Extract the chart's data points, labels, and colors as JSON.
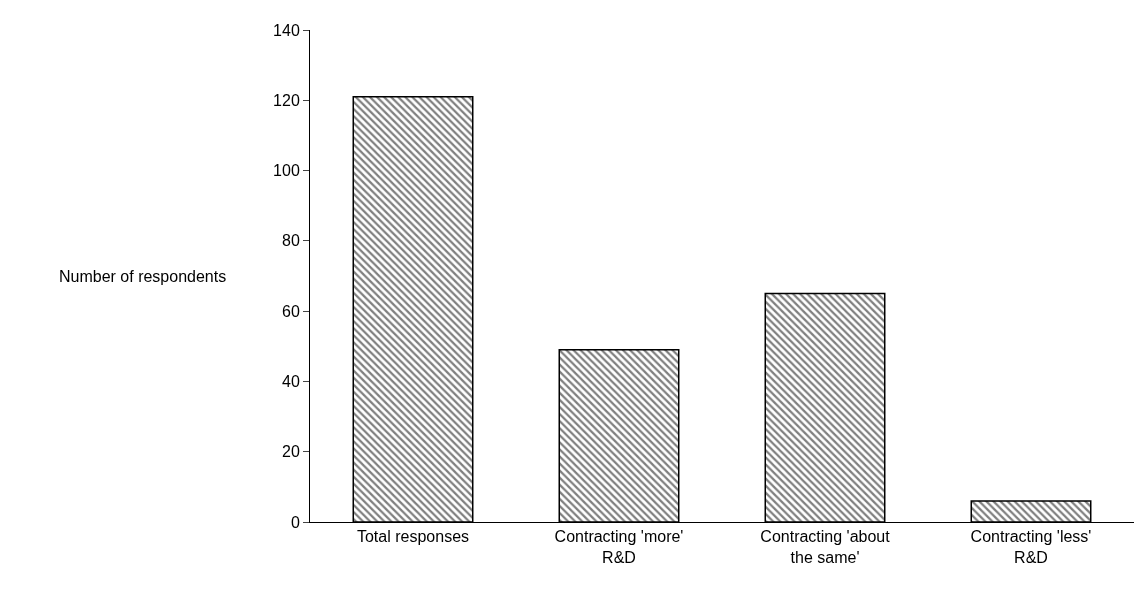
{
  "chart_data": {
    "type": "bar",
    "ylabel": "Number of respondents",
    "categories": [
      "Total responses",
      "Contracting 'more'\nR&D",
      "Contracting 'about\nthe same'",
      "Contracting 'less'\nR&D"
    ],
    "values": [
      121,
      49,
      65,
      6
    ],
    "color": "#000000",
    "ylim": [
      0,
      140
    ],
    "yticks": [
      0,
      20,
      40,
      60,
      80,
      100,
      120,
      140
    ]
  }
}
